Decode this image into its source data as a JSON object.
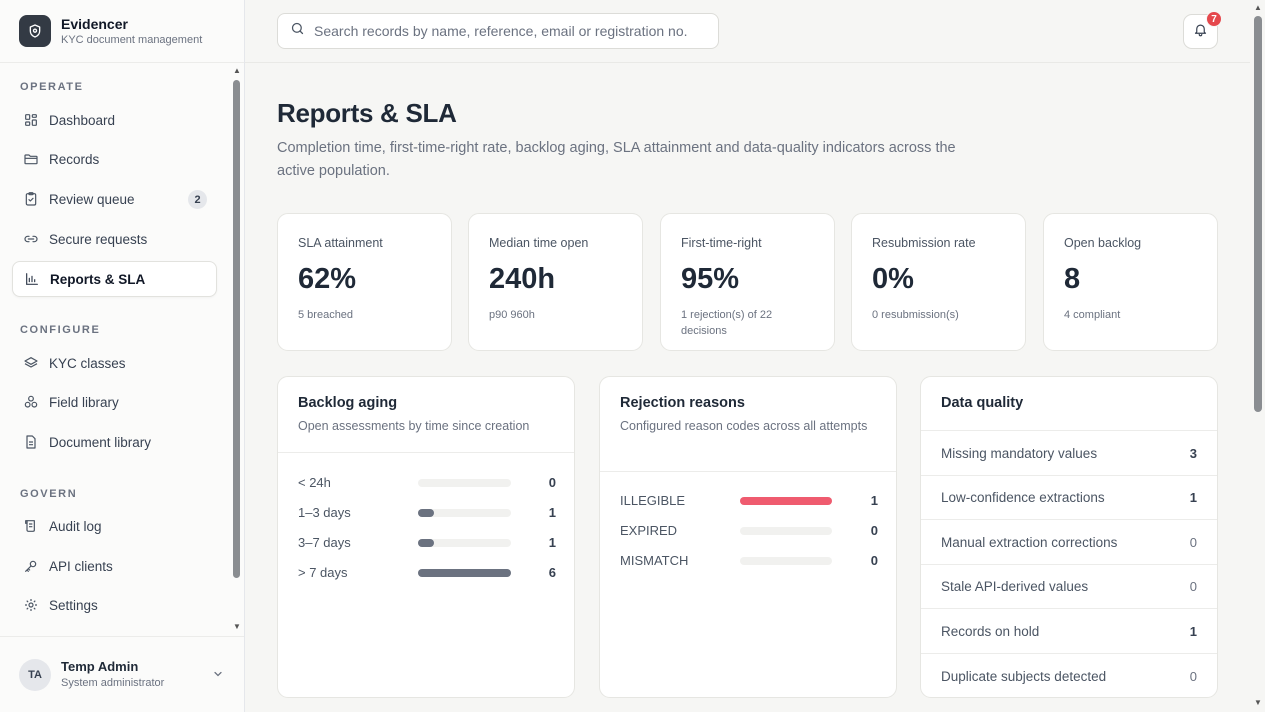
{
  "app": {
    "name": "Evidencer",
    "subtitle": "KYC document management"
  },
  "sidebar": {
    "sections": [
      {
        "label": "OPERATE",
        "items": [
          {
            "label": "Dashboard",
            "icon": "dashboard-icon"
          },
          {
            "label": "Records",
            "icon": "folder-icon"
          },
          {
            "label": "Review queue",
            "icon": "clipboard-check-icon",
            "badge": "2"
          },
          {
            "label": "Secure requests",
            "icon": "link-icon"
          },
          {
            "label": "Reports & SLA",
            "icon": "bar-chart-icon",
            "active": true
          }
        ]
      },
      {
        "label": "CONFIGURE",
        "items": [
          {
            "label": "KYC classes",
            "icon": "layers-icon"
          },
          {
            "label": "Field library",
            "icon": "shapes-icon"
          },
          {
            "label": "Document library",
            "icon": "file-text-icon"
          }
        ]
      },
      {
        "label": "GOVERN",
        "items": [
          {
            "label": "Audit log",
            "icon": "scroll-icon"
          },
          {
            "label": "API clients",
            "icon": "key-icon"
          },
          {
            "label": "Settings",
            "icon": "gear-icon"
          }
        ]
      }
    ]
  },
  "user": {
    "initials": "TA",
    "name": "Temp Admin",
    "role": "System administrator"
  },
  "search": {
    "placeholder": "Search records by name, reference, email or registration no."
  },
  "notifications": {
    "count": "7"
  },
  "page": {
    "title": "Reports & SLA",
    "description": "Completion time, first-time-right rate, backlog aging, SLA attainment and data-quality indicators across the active population."
  },
  "kpis": [
    {
      "label": "SLA attainment",
      "value": "62%",
      "sub": "5 breached"
    },
    {
      "label": "Median time open",
      "value": "240h",
      "sub": "p90 960h"
    },
    {
      "label": "First-time-right",
      "value": "95%",
      "sub": "1 rejection(s) of 22 decisions"
    },
    {
      "label": "Resubmission rate",
      "value": "0%",
      "sub": "0 resubmission(s)"
    },
    {
      "label": "Open backlog",
      "value": "8",
      "sub": "4 compliant"
    }
  ],
  "backlog": {
    "title": "Backlog aging",
    "subtitle": "Open assessments by time since creation",
    "rows": [
      {
        "label": "< 24h",
        "value": 0
      },
      {
        "label": "1–3 days",
        "value": 1
      },
      {
        "label": "3–7 days",
        "value": 1
      },
      {
        "label": "> 7 days",
        "value": 6
      }
    ],
    "max": 6,
    "color": "#6b7280"
  },
  "rejections": {
    "title": "Rejection reasons",
    "subtitle": "Configured reason codes across all attempts",
    "rows": [
      {
        "label": "ILLEGIBLE",
        "value": 1
      },
      {
        "label": "EXPIRED",
        "value": 0
      },
      {
        "label": "MISMATCH",
        "value": 0
      }
    ],
    "max": 1,
    "color": "#ef5b6f"
  },
  "data_quality": {
    "title": "Data quality",
    "rows": [
      {
        "label": "Missing mandatory values",
        "value": "3"
      },
      {
        "label": "Low-confidence extractions",
        "value": "1"
      },
      {
        "label": "Manual extraction corrections",
        "value": "0"
      },
      {
        "label": "Stale API-derived values",
        "value": "0"
      },
      {
        "label": "Records on hold",
        "value": "1"
      },
      {
        "label": "Duplicate subjects detected",
        "value": "0"
      }
    ]
  }
}
